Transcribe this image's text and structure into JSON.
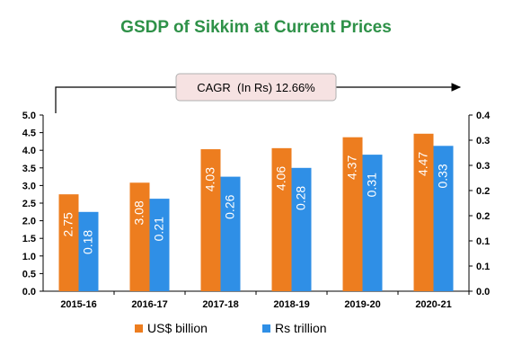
{
  "chart_data": {
    "type": "bar",
    "title": "GSDP of Sikkim at Current Prices",
    "annotation": "CAGR  (In Rs) 12.66%",
    "categories": [
      "2015-16",
      "2016-17",
      "2017-18",
      "2018-19",
      "2019-20",
      "2020-21"
    ],
    "series": [
      {
        "name": "US$ billion",
        "axis": "left",
        "color": "#ED7D1F",
        "values": [
          2.75,
          3.08,
          4.03,
          4.06,
          4.37,
          4.47
        ]
      },
      {
        "name": "Rs trillion",
        "axis": "right",
        "color": "#2F8FE6",
        "values": [
          0.18,
          0.21,
          0.26,
          0.28,
          0.31,
          0.33
        ]
      }
    ],
    "ylim_left": [
      0,
      5.0
    ],
    "yticks_left": [
      "0.0",
      "0.5",
      "1.0",
      "1.5",
      "2.0",
      "2.5",
      "3.0",
      "3.5",
      "4.0",
      "4.5",
      "5.0"
    ],
    "ylim_right": [
      0,
      0.4
    ],
    "yticks_right": [
      "0.0",
      "0.1",
      "0.1",
      "0.2",
      "0.2",
      "0.3",
      "0.3",
      "0.4"
    ],
    "legend_position": "bottom",
    "grid": false,
    "colors": {
      "title": "#2E9148",
      "axis": "#000000",
      "annotation_bg": "#F6E2E2",
      "annotation_border": "#B0B0B0"
    }
  }
}
